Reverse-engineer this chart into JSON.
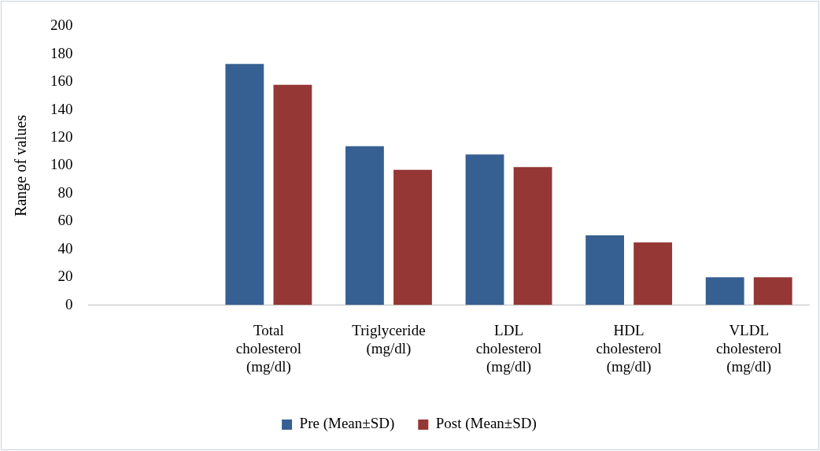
{
  "chart_data": {
    "type": "bar",
    "ylabel": "Range of values",
    "categories": [
      null,
      "Total cholesterol (mg/dl)",
      "Triglyceride (mg/dl)",
      "LDL cholesterol (mg/dl)",
      "HDL cholesterol (mg/dl)",
      "VLDL cholesterol (mg/dl)"
    ],
    "series": [
      {
        "name": "Pre (Mean±SD)",
        "color": "#376092",
        "values": [
          null,
          173,
          114,
          108,
          50,
          20
        ]
      },
      {
        "name": "Post (Mean±SD)",
        "color": "#953735",
        "values": [
          null,
          158,
          97,
          99,
          45,
          20
        ]
      }
    ],
    "ylim": [
      0,
      200
    ],
    "yticks": [
      0,
      20,
      40,
      60,
      80,
      100,
      120,
      140,
      160,
      180,
      200
    ],
    "grid": false,
    "legend": "bottom"
  }
}
